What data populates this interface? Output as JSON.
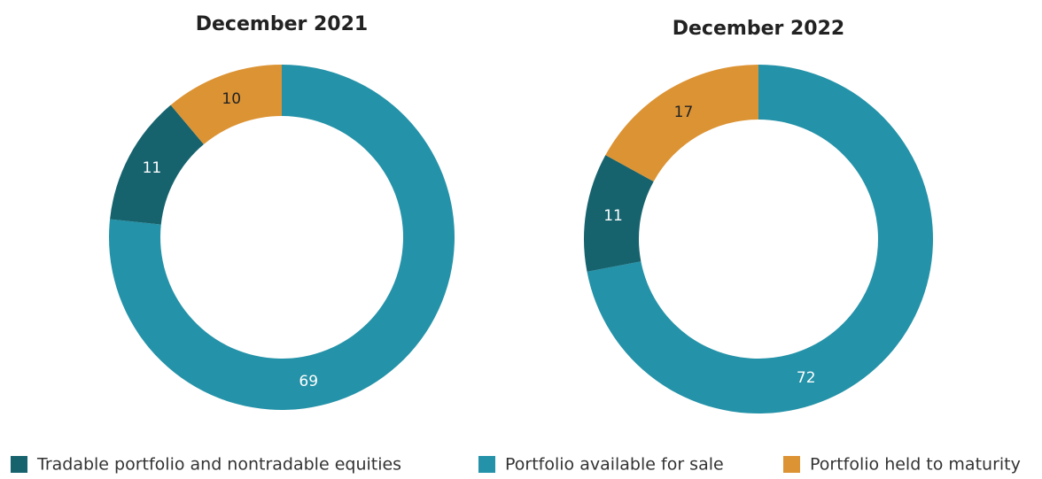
{
  "legend": {
    "labels": [
      "Tradable portfolio and nontradable equities",
      "Portfolio available for sale",
      "Portfolio held to maturity"
    ],
    "colors": [
      "#16636e",
      "#2492a8",
      "#dc9334"
    ]
  },
  "chart_data": [
    {
      "type": "pie",
      "title": "December 2021",
      "values": [
        11,
        69,
        10
      ]
    },
    {
      "type": "pie",
      "title": "December 2022",
      "values": [
        11,
        72,
        17
      ]
    }
  ]
}
